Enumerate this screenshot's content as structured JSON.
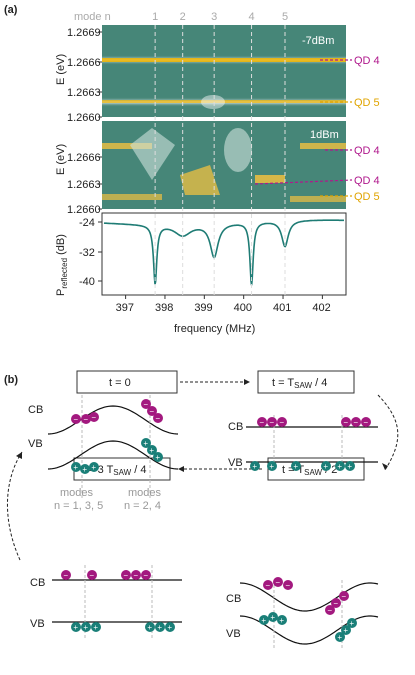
{
  "panel_a": {
    "label": "(a)",
    "mode_header": "mode n",
    "mode_numbers": [
      "1",
      "2",
      "3",
      "4",
      "5"
    ],
    "top_power": "-7dBm",
    "mid_power": "1dBm",
    "y_ticks": [
      "1.2669",
      "1.2666",
      "1.2663",
      "1.2660"
    ],
    "y_label": "E (eV)",
    "qd_labels_top": [
      "QD 4",
      "QD 5"
    ],
    "qd_labels_mid": [
      "QD 4",
      "QD 4",
      "QD 5"
    ],
    "refl_ticks": [
      "-24",
      "-32",
      "-40"
    ],
    "refl_label": "P",
    "refl_label_sub": "reflected",
    "refl_label_unit": " (dB)",
    "x_ticks": [
      "397",
      "398",
      "399",
      "400",
      "401",
      "402"
    ],
    "x_label": "frequency (MHz)",
    "colors": {
      "map_bg": "#3f7f72",
      "qd4": "#b0188c",
      "qd5": "#e0a400",
      "trace": "#1f7c75"
    }
  },
  "panel_b": {
    "label": "(b)",
    "t0": "t = 0",
    "t1_a": "t = T",
    "t1_sub": "SAW",
    "t1_b": " / 4",
    "t2_a": "t = T",
    "t2_sub": "SAW",
    "t2_b": " / 2",
    "t3_a": "t = 3 T",
    "t3_sub": "SAW",
    "t3_b": " / 4",
    "cb": "CB",
    "vb": "VB",
    "modes_odd_1": "modes",
    "modes_odd_2": "n = 1, 3, 5",
    "modes_even_1": "modes",
    "modes_even_2": "n = 2, 4",
    "electron_sign": "−",
    "hole_sign": "+",
    "colors": {
      "electron": "#a3197f",
      "hole": "#1a7f78"
    }
  }
}
